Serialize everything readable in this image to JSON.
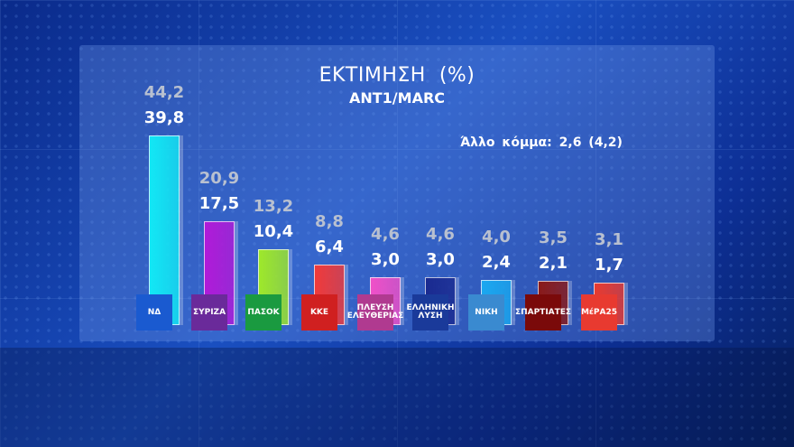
{
  "chart_data": {
    "type": "bar",
    "title": "ΕΚΤΙΜΗΣΗ  (%)",
    "subtitle": "ANT1/MARC",
    "note": "Άλλο κόμμα: 2,6 (4,2)",
    "categories": [
      "ΝΔ",
      "ΣΥΡΙΖΑ",
      "ΠΑΣΟΚ",
      "ΚΚΕ",
      "ΠΛΕΥΣΗ ΕΛΕΥΘΕΡΙΑΣ",
      "ΕΛΛΗΝΙΚΗ ΛΥΣΗ",
      "ΝΙΚΗ",
      "ΣΠΑΡΤΙΑΤΕΣ",
      "ΜέΡΑ25"
    ],
    "logo_text": [
      "ΝΔ",
      "ΣΥΡΙΖΑ",
      "ΠΑΣΟΚ",
      "ΚΚΕ",
      "ΠΛΕΥΣΗ ΕΛΕΥΘΕΡΙΑΣ",
      "ΕΛΛΗΝΙΚΗ ΛΥΣΗ",
      "ΝΙΚΗ",
      "ΣΠΑΡΤΙΑΤΕΣ",
      "ΜέΡΑ25"
    ],
    "series": [
      {
        "values": [
          39.8,
          17.5,
          10.4,
          6.4,
          3.0,
          3.0,
          2.4,
          2.1,
          1.7
        ],
        "labels": [
          "39,8",
          "17,5",
          "10,4",
          "6,4",
          "3,0",
          "3,0",
          "2,4",
          "2,1",
          "1,7"
        ]
      },
      {
        "values": [
          44.2,
          20.9,
          13.2,
          8.8,
          4.6,
          4.6,
          4.0,
          3.5,
          3.1
        ],
        "labels": [
          "44,2",
          "20,9",
          "13,2",
          "8,8",
          "4,6",
          "4,6",
          "4,0",
          "3,5",
          "3,1"
        ]
      }
    ],
    "bar_colors": [
      "#12e8f5",
      "#b01ad8",
      "#9ee82a",
      "#f03a3a",
      "#f050c8",
      "#1a2a90",
      "#1aa8f0",
      "#8a1a1a",
      "#e83a30"
    ],
    "logo_colors": [
      "#1a5ad0",
      "#6a2a9a",
      "#1a9a40",
      "#d02020",
      "#b03a90",
      "#1a3a9a",
      "#3a8ad0",
      "#7a0a0a",
      "#e83a30"
    ],
    "label_colors": {
      "current": "#ffffff",
      "previous": "#b8c0d0"
    }
  }
}
